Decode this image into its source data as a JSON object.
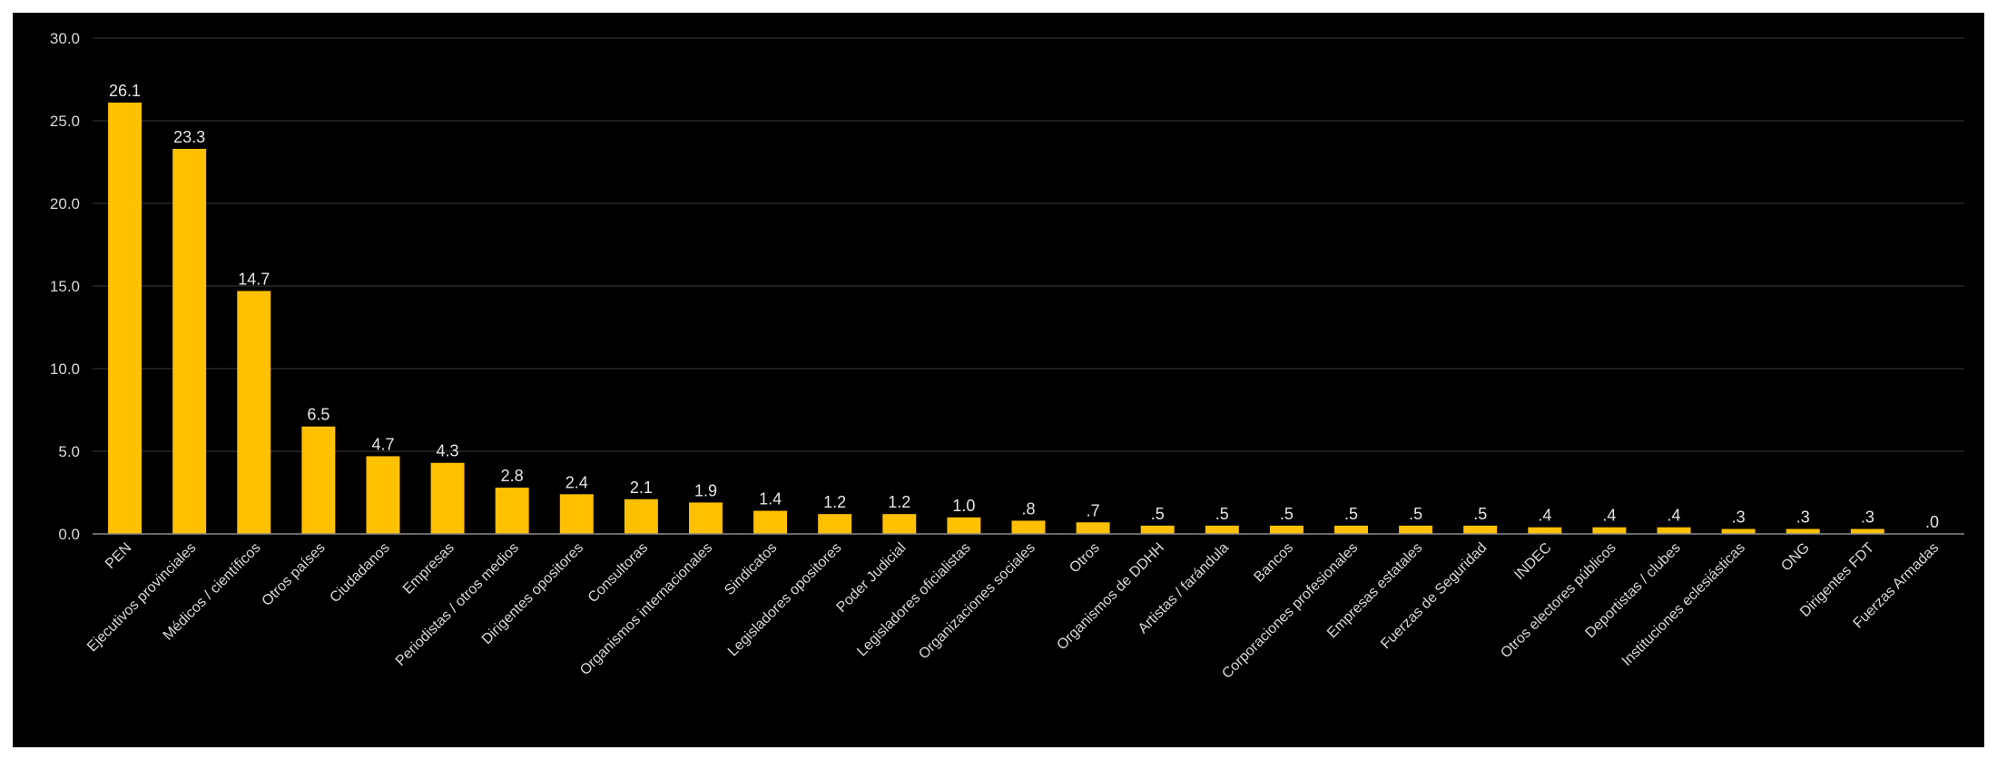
{
  "chart_data": {
    "type": "bar",
    "categories": [
      "PEN",
      "Ejecutivos provinciales",
      "Médicos / científicos",
      "Otros países",
      "Ciudadanos",
      "Empresas",
      "Periodistas / otros medios",
      "Dirigentes opositores",
      "Consultoras",
      "Organismos internacionales",
      "Sindicatos",
      "Legisladores opositores",
      "Poder Judicial",
      "Legisladores oficialistas",
      "Organizaciones sociales",
      "Otros",
      "Organismos de DDHH",
      "Artistas / farándula",
      "Bancos",
      "Corporaciones profesionales",
      "Empresas estatales",
      "Fuerzas de Seguridad",
      "INDEC",
      "Otros electores públicos",
      "Deportistas / clubes",
      "Instituciones eclesiásticas",
      "ONG",
      "Dirigentes FDT",
      "Fuerzas Armadas"
    ],
    "values": [
      26.1,
      23.3,
      14.7,
      6.5,
      4.7,
      4.3,
      2.8,
      2.4,
      2.1,
      1.9,
      1.4,
      1.2,
      1.2,
      1.0,
      0.8,
      0.7,
      0.5,
      0.5,
      0.5,
      0.5,
      0.5,
      0.5,
      0.4,
      0.4,
      0.4,
      0.3,
      0.3,
      0.3,
      0.0
    ],
    "data_labels": [
      "26.1",
      "23.3",
      "14.7",
      "6.5",
      "4.7",
      "4.3",
      "2.8",
      "2.4",
      "2.1",
      "1.9",
      "1.4",
      "1.2",
      "1.2",
      "1.0",
      ".8",
      ".7",
      ".5",
      ".5",
      ".5",
      ".5",
      ".5",
      ".5",
      ".4",
      ".4",
      ".4",
      ".3",
      ".3",
      ".3",
      ".0"
    ],
    "y_ticks": [
      "0.0",
      "5.0",
      "10.0",
      "15.0",
      "20.0",
      "25.0",
      "30.0"
    ],
    "ylim": [
      0,
      30
    ],
    "grid": true,
    "legend": "none",
    "title": "",
    "xlabel": "",
    "ylabel": "",
    "colors": {
      "background": "#000000",
      "bar": "#FFC000",
      "text": "#d9d9d9",
      "grid": "#3a3a3a"
    }
  }
}
